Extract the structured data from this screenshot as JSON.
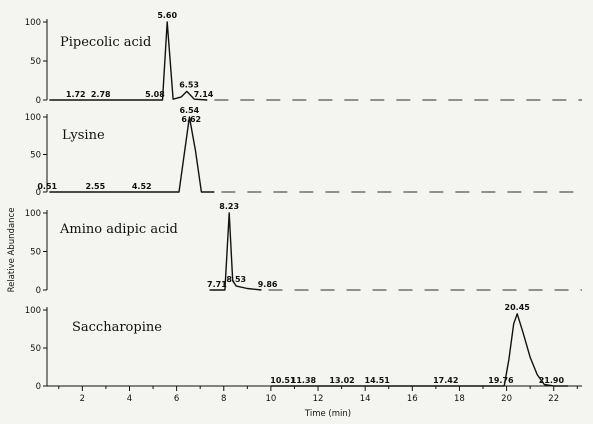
{
  "chart_data": {
    "type": "line",
    "xlabel": "Time (min)",
    "ylabel": "Relative Abundance",
    "xlim": [
      0.5,
      23.2
    ],
    "x_ticks": [
      2,
      4,
      6,
      8,
      10,
      12,
      14,
      16,
      18,
      20,
      22
    ],
    "ylim": [
      0,
      100
    ],
    "y_ticks": [
      0,
      50,
      100
    ],
    "grid": false,
    "series": [
      {
        "name": "Pipecolic acid",
        "points": [
          [
            0.6,
            0
          ],
          [
            5.4,
            0
          ],
          [
            5.6,
            100
          ],
          [
            5.85,
            1
          ],
          [
            6.2,
            4
          ],
          [
            6.43,
            11
          ],
          [
            6.75,
            1
          ],
          [
            7.3,
            0
          ]
        ],
        "peak_labels": [
          {
            "x": 1.72,
            "y": 0,
            "label": "1.72"
          },
          {
            "x": 2.78,
            "y": 0,
            "label": "2.78"
          },
          {
            "x": 5.08,
            "y": 0,
            "label": "5.08"
          },
          {
            "x": 5.6,
            "y": 100,
            "label": "5.60"
          },
          {
            "x": 6.53,
            "y": 11,
            "label": "6.53"
          },
          {
            "x": 7.14,
            "y": 0,
            "label": "7.14"
          }
        ]
      },
      {
        "name": "Lysine",
        "points": [
          [
            0.6,
            0
          ],
          [
            6.1,
            0
          ],
          [
            6.54,
            100
          ],
          [
            6.8,
            55
          ],
          [
            7.05,
            0
          ],
          [
            7.6,
            0
          ]
        ],
        "peak_labels": [
          {
            "x": 0.51,
            "y": 0,
            "label": "0.51"
          },
          {
            "x": 2.55,
            "y": 0,
            "label": "2.55"
          },
          {
            "x": 4.52,
            "y": 0,
            "label": "4.52"
          },
          {
            "x": 6.54,
            "y": 100,
            "label": "6.54"
          },
          {
            "x": 6.62,
            "y": 88,
            "label": "6.62"
          }
        ]
      },
      {
        "name": "Amino adipic acid",
        "points": [
          [
            7.4,
            0
          ],
          [
            8.05,
            0
          ],
          [
            8.23,
            100
          ],
          [
            8.38,
            12
          ],
          [
            8.53,
            5
          ],
          [
            9.0,
            2
          ],
          [
            9.6,
            0
          ]
        ],
        "peak_labels": [
          {
            "x": 7.71,
            "y": 0,
            "label": "7.71"
          },
          {
            "x": 8.23,
            "y": 100,
            "label": "8.23"
          },
          {
            "x": 8.53,
            "y": 5,
            "label": "8.53"
          },
          {
            "x": 9.86,
            "y": 0,
            "label": "9.86"
          }
        ]
      },
      {
        "name": "Saccharopine",
        "points": [
          [
            10.0,
            0
          ],
          [
            19.9,
            0
          ],
          [
            20.1,
            35
          ],
          [
            20.3,
            82
          ],
          [
            20.45,
            95
          ],
          [
            20.7,
            70
          ],
          [
            21.0,
            38
          ],
          [
            21.3,
            15
          ],
          [
            21.6,
            2
          ],
          [
            22.0,
            0
          ],
          [
            22.6,
            0
          ]
        ],
        "peak_labels": [
          {
            "x": 10.51,
            "y": 0,
            "label": "10.51"
          },
          {
            "x": 11.38,
            "y": 0,
            "label": "11.38"
          },
          {
            "x": 13.02,
            "y": 0,
            "label": "13.02"
          },
          {
            "x": 14.51,
            "y": 0,
            "label": "14.51"
          },
          {
            "x": 17.42,
            "y": 0,
            "label": "17.42"
          },
          {
            "x": 19.76,
            "y": 0,
            "label": "19.76"
          },
          {
            "x": 20.45,
            "y": 95,
            "label": "20.45"
          },
          {
            "x": 21.9,
            "y": 0,
            "label": "21.90"
          }
        ]
      }
    ],
    "colors": {
      "line": "#111111",
      "background": "#f4f4f1",
      "dashed_baseline": "#555555"
    }
  }
}
